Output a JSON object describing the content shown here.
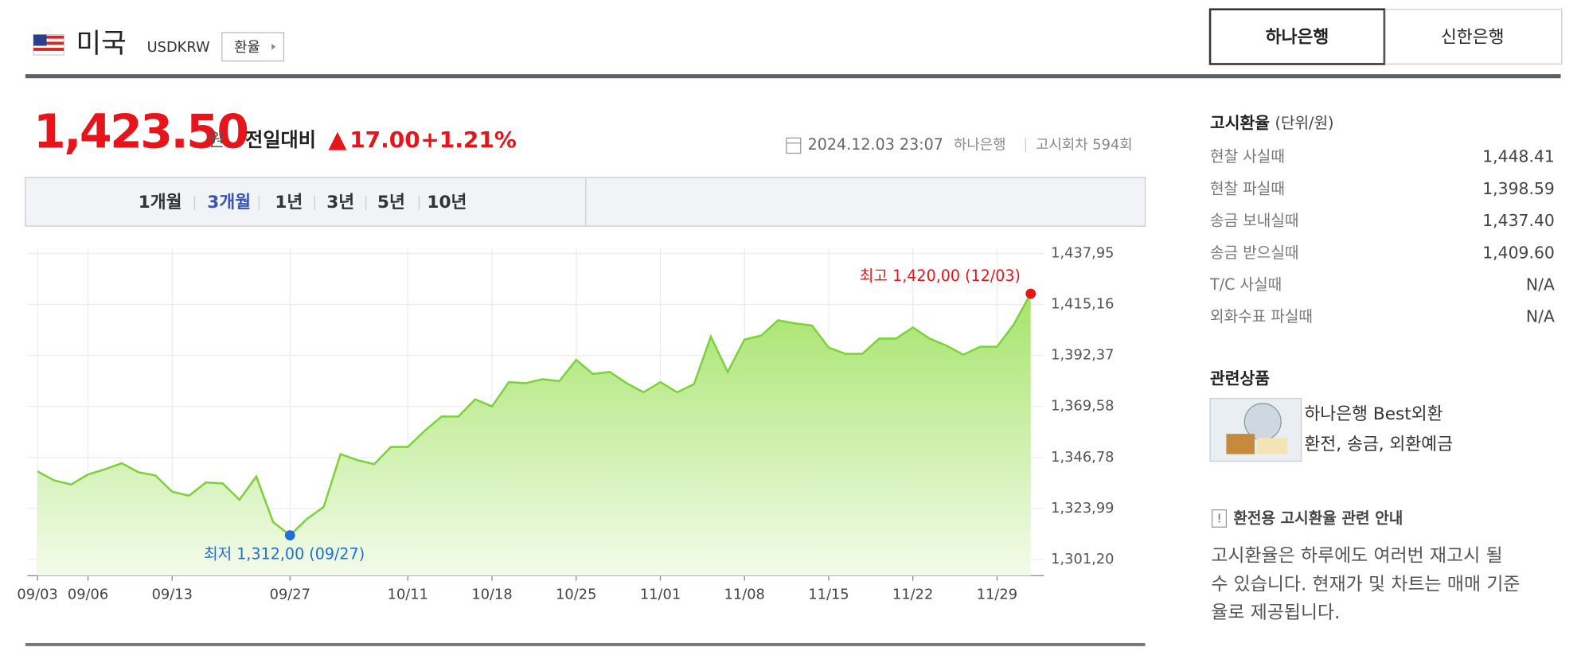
{
  "header": {
    "country": "미국",
    "code": "USDKRW",
    "button": "환율"
  },
  "bank_tabs": {
    "items": [
      "하나은행",
      "신한은행"
    ],
    "active": 0
  },
  "price": {
    "value": "1,423.50",
    "unit": "원",
    "label": "전일대비",
    "change": "17.00",
    "change_pct": "+1.21%"
  },
  "meta": {
    "datetime": "2024.12.03 23:07",
    "bank": "하나은행",
    "round": "고시회차 594회"
  },
  "periods": {
    "items": [
      "1개월",
      "3개월",
      "1년",
      "3년",
      "5년",
      "10년"
    ],
    "active": 1
  },
  "rates": {
    "title": "고시환율",
    "unit": "(단위/원)",
    "rows": [
      [
        "현찰 사실때",
        "1,448.41"
      ],
      [
        "현찰 파실때",
        "1,398.59"
      ],
      [
        "송금 보내실때",
        "1,437.40"
      ],
      [
        "송금 받으실때",
        "1,409.60"
      ],
      [
        "T/C 사실때",
        "N/A"
      ],
      [
        "외화수표 파실때",
        "N/A"
      ]
    ]
  },
  "related": {
    "title": "관련상품",
    "name": "하나은행 Best외환",
    "desc": "환전, 송금, 외환예금"
  },
  "notice": {
    "title": "환전용 고시환율 관련 안내",
    "lines": [
      "고시환율은 하루에도 여러번 재고시 될",
      "수 있습니다. 현재가 및 차트는 매매 기준",
      "율로 제공됩니다."
    ]
  },
  "chart_data": {
    "type": "line",
    "categories": [
      "09/03",
      null,
      null,
      "09/06",
      null,
      null,
      null,
      null,
      "09/13",
      null,
      null,
      null,
      null,
      null,
      null,
      "09/27",
      null,
      null,
      null,
      null,
      null,
      null,
      "10/11",
      null,
      null,
      null,
      null,
      "10/18",
      null,
      null,
      null,
      null,
      "10/25",
      null,
      null,
      null,
      null,
      "11/01",
      null,
      null,
      null,
      null,
      "11/08",
      null,
      null,
      null,
      null,
      "11/15",
      null,
      null,
      null,
      null,
      "11/22",
      null,
      null,
      null,
      null,
      "11/29",
      null,
      null
    ],
    "values": [
      1340.6,
      1336.5,
      1334.7,
      1339.2,
      1341.5,
      1344.2,
      1340.2,
      1338.8,
      1331.5,
      1329.7,
      1335.6,
      1335.2,
      1327.9,
      1338.3,
      1317.9,
      1312.0,
      1319.3,
      1324.7,
      1348.3,
      1345.6,
      1343.8,
      1351.5,
      1351.5,
      1358.7,
      1365.1,
      1365.1,
      1372.8,
      1369.6,
      1380.5,
      1380.0,
      1381.8,
      1380.9,
      1390.4,
      1384.1,
      1385.0,
      1380.0,
      1375.9,
      1380.5,
      1375.9,
      1379.6,
      1400.8,
      1385.0,
      1399.5,
      1401.3,
      1408.1,
      1406.7,
      1405.8,
      1395.9,
      1393.1,
      1393.1,
      1399.9,
      1399.9,
      1404.9,
      1399.9,
      1396.8,
      1392.7,
      1396.3,
      1396.3,
      1406.3,
      1420.0
    ],
    "color": "#7dd23b",
    "ylim": [
      1301.2,
      1437.95
    ],
    "yticks": [
      {
        "value": 1301.2,
        "label": "1,301,20"
      },
      {
        "value": 1323.99,
        "label": "1,323,99"
      },
      {
        "value": 1346.78,
        "label": "1,346,78"
      },
      {
        "value": 1369.58,
        "label": "1,369,58"
      },
      {
        "value": 1392.37,
        "label": "1,392,37"
      },
      {
        "value": 1415.16,
        "label": "1,415,16"
      },
      {
        "value": 1437.95,
        "label": "1,437,95"
      }
    ],
    "grid": true,
    "annotations": {
      "max": "최고 1,420,00 (12/03)",
      "min": "최저 1,312,00 (09/27)"
    },
    "max_color": "#e8141c",
    "min_color": "#1e6fd6"
  }
}
